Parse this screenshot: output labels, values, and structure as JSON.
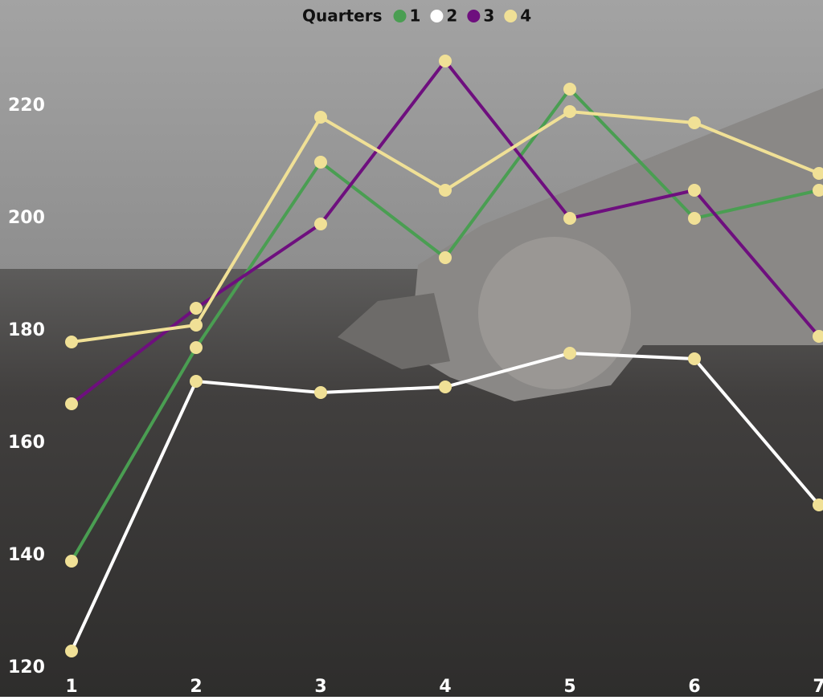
{
  "chart_data": {
    "type": "line",
    "legend_title": "Quarters",
    "legend_position": "top",
    "x": [
      1,
      2,
      3,
      4,
      5,
      6,
      7
    ],
    "xlim": [
      1,
      7
    ],
    "xticks": [
      1,
      2,
      3,
      4,
      5,
      6,
      7
    ],
    "ylim": [
      120,
      238
    ],
    "yticks": [
      120,
      140,
      160,
      180,
      200,
      220
    ],
    "marker_color": "#f0e096",
    "series": [
      {
        "name": "1",
        "color": "#4a9e52",
        "values": [
          139,
          177,
          210,
          193,
          223,
          200,
          205
        ]
      },
      {
        "name": "2",
        "color": "#ffffff",
        "values": [
          123,
          171,
          169,
          170,
          176,
          175,
          149
        ]
      },
      {
        "name": "3",
        "color": "#6e0f7e",
        "values": [
          167,
          184,
          199,
          228,
          200,
          205,
          179
        ]
      },
      {
        "name": "4",
        "color": "#f0e096",
        "values": [
          178,
          181,
          218,
          205,
          219,
          217,
          208
        ]
      }
    ]
  }
}
